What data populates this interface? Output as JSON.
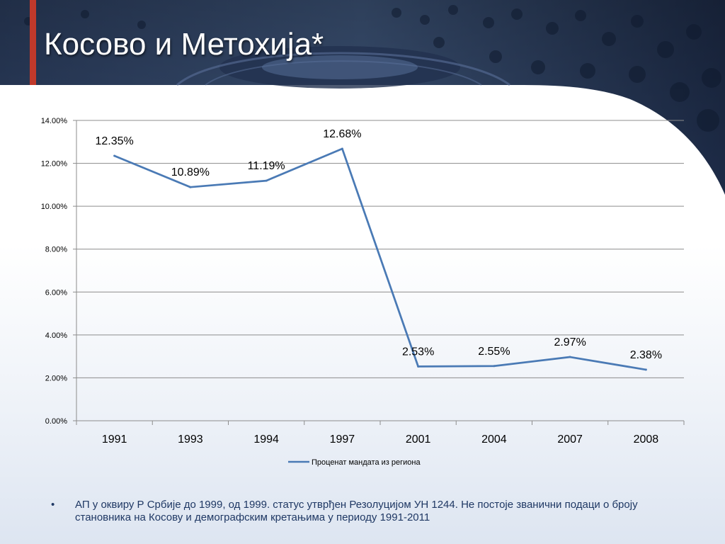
{
  "slide": {
    "title": "Косово и Метохија*",
    "footnote_bullet": "•",
    "footnote": "АП у оквиру Р Србије до 1999, од 1999. статус утврђен Резолуцијом УН 1244. Не постоје званични подаци о броју становника на Косову и демографским кретањима у периоду 1991-2011"
  },
  "chart_data": {
    "type": "line",
    "categories": [
      "1991",
      "1993",
      "1994",
      "1997",
      "2001",
      "2004",
      "2007",
      "2008"
    ],
    "series": [
      {
        "name": "Проценат мандата из региона",
        "values": [
          12.35,
          10.89,
          11.19,
          12.68,
          2.53,
          2.55,
          2.97,
          2.38
        ],
        "labels": [
          "12.35%",
          "10.89%",
          "11.19%",
          "12.68%",
          "2.53%",
          "2.55%",
          "2.97%",
          "2.38%"
        ],
        "color": "#4a7ab5"
      }
    ],
    "ylim": [
      0,
      14
    ],
    "yticks": [
      "0.00%",
      "2.00%",
      "4.00%",
      "6.00%",
      "8.00%",
      "10.00%",
      "12.00%",
      "14.00%"
    ],
    "grid": true,
    "legend": "bottom",
    "title": "",
    "xlabel": "",
    "ylabel": ""
  },
  "colors": {
    "header_dark": "#1a2a48",
    "accent_red": "#c0392b",
    "line": "#4a7ab5",
    "gridline": "#8c8c8c",
    "footnote_text": "#1f3864"
  }
}
